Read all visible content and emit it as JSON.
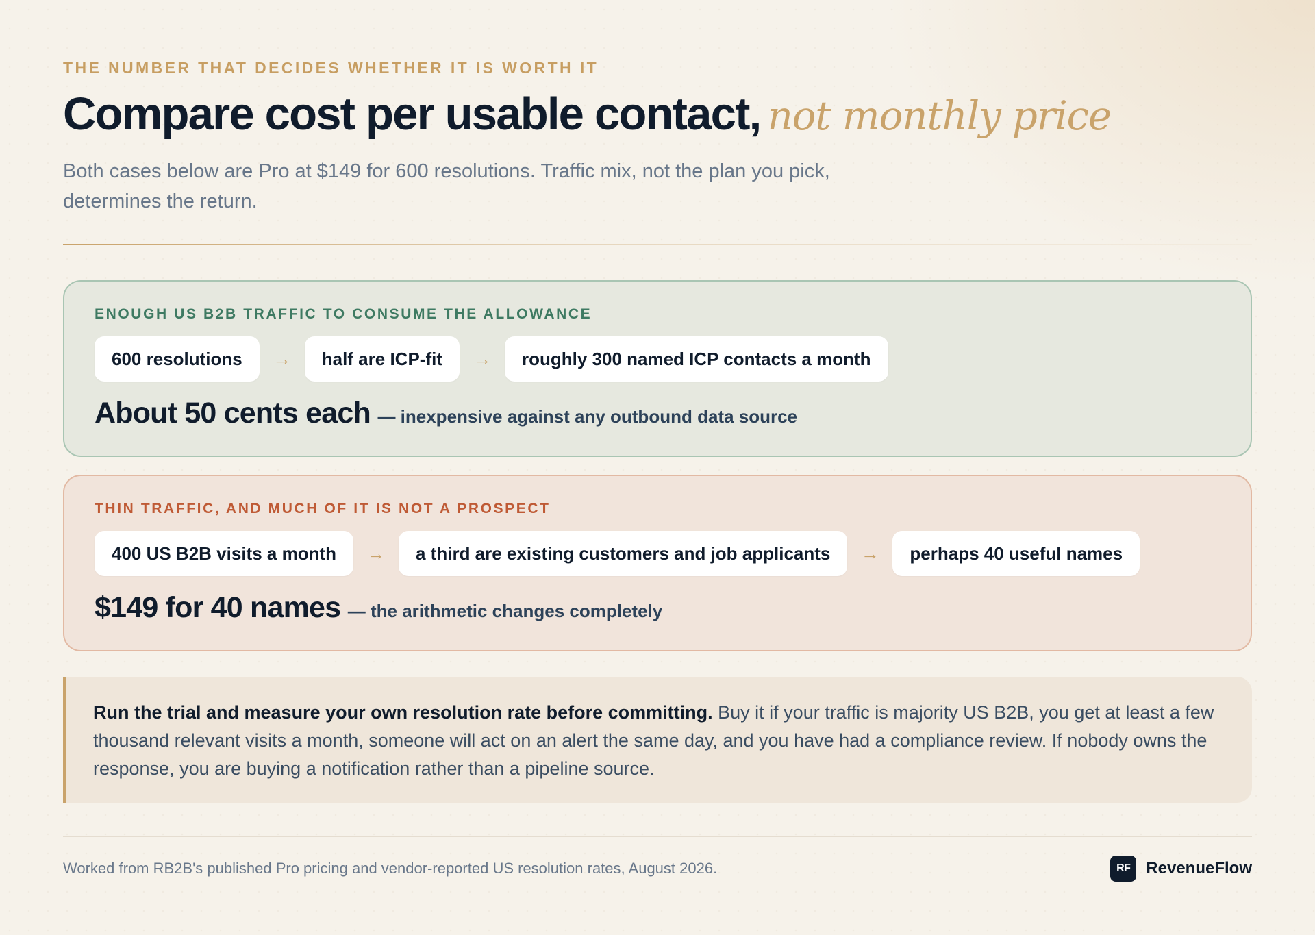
{
  "header": {
    "eyebrow": "THE NUMBER THAT DECIDES WHETHER IT IS WORTH IT",
    "title_main": "Compare cost per usable contact,",
    "title_accent": "not monthly price",
    "subtitle": "Both cases below are Pro at $149 for 600 resolutions. Traffic mix, not the plan you pick, determines the return."
  },
  "cases": [
    {
      "label": "ENOUGH US B2B TRAFFIC TO CONSUME THE ALLOWANCE",
      "steps": [
        "600 resolutions",
        "half are ICP-fit",
        "roughly 300 named ICP contacts a month"
      ],
      "arrow": "→",
      "result": "About 50 cents each",
      "note": "— inexpensive against any outbound data source"
    },
    {
      "label": "THIN TRAFFIC, AND MUCH OF IT IS NOT A PROSPECT",
      "steps": [
        "400 US B2B visits a month",
        "a third are existing customers and job applicants",
        "perhaps 40 useful names"
      ],
      "arrow": "→",
      "result": "$149 for 40 names",
      "note": "— the arithmetic changes completely"
    }
  ],
  "callout": {
    "lead": "Run the trial and measure your own resolution rate before committing.",
    "body": " Buy it if your traffic is majority US B2B, you get at least a few thousand relevant visits a month, someone will act on an alert the same day, and you have had a compliance review. If nobody owns the response, you are buying a notification rather than a pipeline source."
  },
  "footer": {
    "note": "Worked from RB2B's published Pro pricing and vendor-reported US resolution rates, August 2026.",
    "brand_mark": "RF",
    "brand_name": "RevenueFlow"
  },
  "colors": {
    "accent_gold": "#c9a36b",
    "ink": "#101c2c",
    "good_label": "#3e7a62",
    "bad_label": "#bf5a35"
  }
}
